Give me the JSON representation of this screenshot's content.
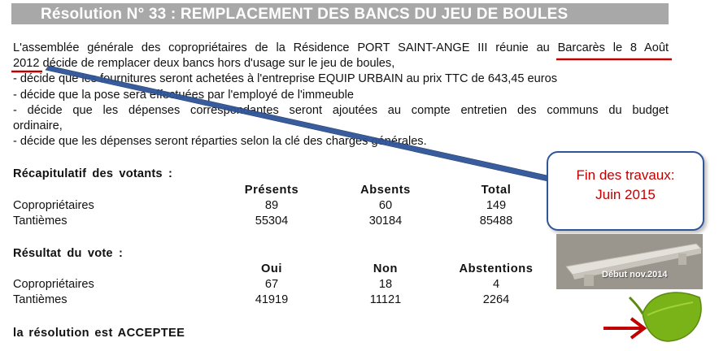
{
  "title": "Résolution N° 33 : REMPLACEMENT DES BANCS DU JEU DE BOULES",
  "paragraph": {
    "line1": "L'assemblée générale des copropriétaires de la Résidence PORT SAINT-ANGE III réunie au Barcarès le 8 Août",
    "line2": "2012 décide de remplacer deux bancs hors d'usage sur le jeu de boules,",
    "line3": "- décide que les fournitures seront achetées à l'entreprise EQUIP URBAIN au prix TTC de 643,45 euros",
    "line4": "- décide que la pose sera effectuées par l'employé de l'immeuble",
    "line5": "- décide que les dépenses correspondantes seront ajoutées au compte entretien des communs du budget",
    "line6": "ordinaire,",
    "line7": "- décide que les dépenses seront réparties selon la clé des charges générales."
  },
  "voters": {
    "title": "Récapitulatif des votants :",
    "headers": [
      "Présents",
      "Absents",
      "Total"
    ],
    "rows": [
      {
        "label": "Copropriétaires",
        "values": [
          "89",
          "60",
          "149"
        ]
      },
      {
        "label": "Tantièmes",
        "values": [
          "55304",
          "30184",
          "85488"
        ]
      }
    ]
  },
  "vote": {
    "title": "Résultat du vote :",
    "headers": [
      "Oui",
      "Non",
      "Abstentions"
    ],
    "rows": [
      {
        "label": "Copropriétaires",
        "values": [
          "67",
          "18",
          "4"
        ]
      },
      {
        "label": "Tantièmes",
        "values": [
          "41919",
          "11121",
          "2264"
        ]
      }
    ]
  },
  "result": "la résolution est ACCEPTEE",
  "callout": {
    "line1": "Fin des travaux:",
    "line2": "Juin 2015"
  },
  "photo": {
    "caption": "Début nov.2014"
  },
  "colors": {
    "title_bar": "#a8a8a8",
    "underline": "#c00000",
    "callout_border": "#2f5597",
    "callout_text": "#c00000",
    "arrow": "#c00000",
    "leaf": "#7ab317"
  },
  "icons": {
    "arrow": "red-arrow-icon",
    "leaf": "green-leaf-icon"
  }
}
